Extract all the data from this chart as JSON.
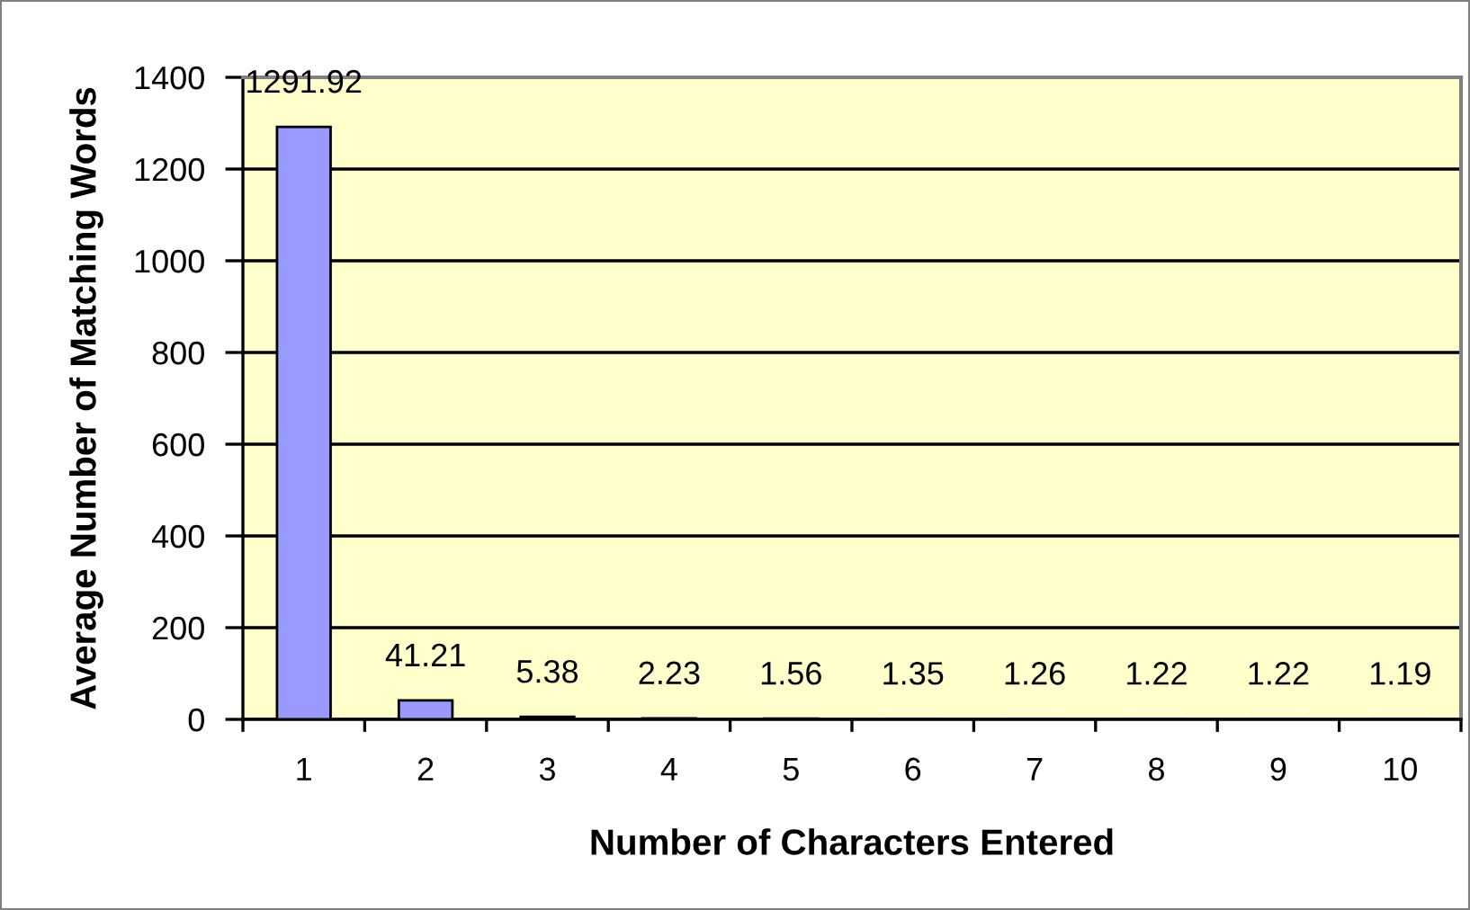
{
  "chart_data": {
    "type": "bar",
    "xlabel": "Number of Characters Entered",
    "ylabel": "Average Number of Matching Words",
    "categories": [
      "1",
      "2",
      "3",
      "4",
      "5",
      "6",
      "7",
      "8",
      "9",
      "10"
    ],
    "values": [
      1291.92,
      41.21,
      5.38,
      2.23,
      1.56,
      1.35,
      1.26,
      1.22,
      1.22,
      1.19
    ],
    "color": "#9999ff",
    "ylim": [
      0,
      1400
    ],
    "yticks": [
      0,
      200,
      400,
      600,
      800,
      1000,
      1200,
      1400
    ],
    "grid": "y",
    "data_labels": true
  }
}
